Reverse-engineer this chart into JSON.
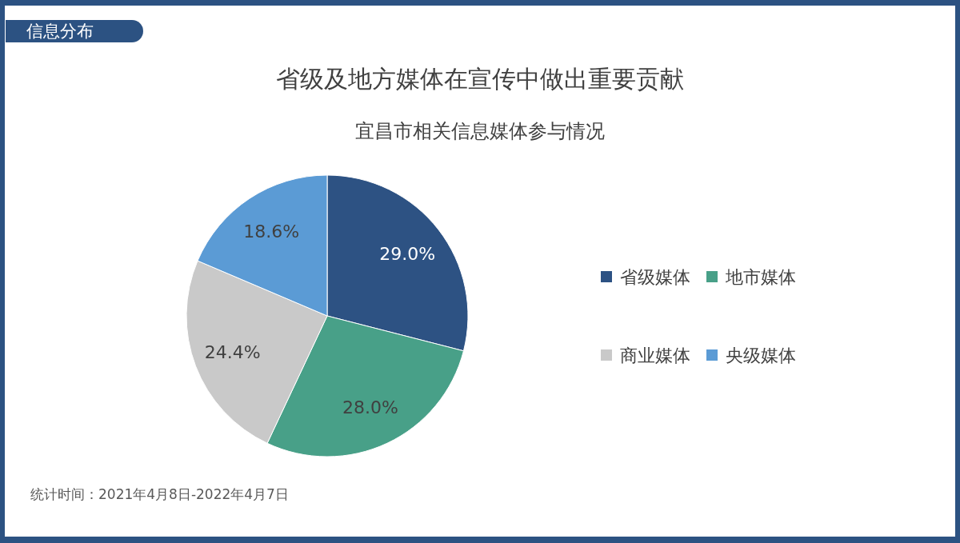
{
  "chart_data": {
    "type": "pie",
    "title": "省级及地方媒体在宣传中做出重要贡献",
    "subtitle": "宜昌市相关信息媒体参与情况",
    "categories": [
      "省级媒体",
      "地市媒体",
      "商业媒体",
      "央级媒体"
    ],
    "values": [
      29.0,
      28.0,
      24.4,
      18.6
    ],
    "colors": [
      "#2d5283",
      "#48a088",
      "#c9c9c9",
      "#5b9bd5"
    ],
    "value_labels": [
      "29.0%",
      "28.0%",
      "24.4%",
      "18.6%"
    ],
    "legend": "right",
    "annotations": [
      "信息分布",
      "统计时间：2021年4月8日-2022年4月7日"
    ]
  }
}
